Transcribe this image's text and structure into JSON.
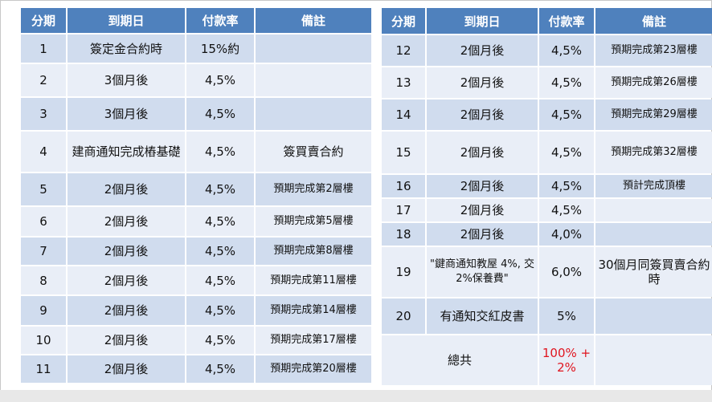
{
  "left_table": {
    "headers": [
      "分期",
      "到期日",
      "付款率",
      "備註"
    ],
    "rows": [
      {
        "period": "1",
        "due": "簽定金合約時",
        "rate": "15%約",
        "note": ""
      },
      {
        "period": "2",
        "due": "3個月後",
        "rate": "4,5%",
        "note": ""
      },
      {
        "period": "3",
        "due": "3個月後",
        "rate": "4,5%",
        "note": ""
      },
      {
        "period": "4",
        "due": "建商通知完成樁基礎",
        "rate": "4,5%",
        "note": "簽買賣合約"
      },
      {
        "period": "5",
        "due": "2個月後",
        "rate": "4,5%",
        "note": "預期完成第2層樓"
      },
      {
        "period": "6",
        "due": "2個月後",
        "rate": "4,5%",
        "note": "預期完成第5層樓"
      },
      {
        "period": "7",
        "due": "2個月後",
        "rate": "4,5%",
        "note": "預期完成第8層樓"
      },
      {
        "period": "8",
        "due": "2個月後",
        "rate": "4,5%",
        "note": "預期完成第11層樓"
      },
      {
        "period": "9",
        "due": "2個月後",
        "rate": "4,5%",
        "note": "預期完成第14層樓"
      },
      {
        "period": "10",
        "due": "2個月後",
        "rate": "4,5%",
        "note": "預期完成第17層樓"
      },
      {
        "period": "11",
        "due": "2個月後",
        "rate": "4,5%",
        "note": "預期完成第20層樓"
      }
    ]
  },
  "right_table": {
    "headers": [
      "分期",
      "到期日",
      "付款率",
      "備註"
    ],
    "rows": [
      {
        "period": "12",
        "due": "2個月後",
        "rate": "4,5%",
        "note": "預期完成第23層樓"
      },
      {
        "period": "13",
        "due": "2個月後",
        "rate": "4,5%",
        "note": "預期完成第26層樓"
      },
      {
        "period": "14",
        "due": "2個月後",
        "rate": "4,5%",
        "note": "預期完成第29層樓"
      },
      {
        "period": "15",
        "due": "2個月後",
        "rate": "4,5%",
        "note": "預期完成第32層樓"
      },
      {
        "period": "16",
        "due": "2個月後",
        "rate": "4,5%",
        "note": "預計完成頂樓"
      },
      {
        "period": "17",
        "due": "2個月後",
        "rate": "4,5%",
        "note": ""
      },
      {
        "period": "18",
        "due": "2個月後",
        "rate": "4,0%",
        "note": ""
      },
      {
        "period": "19",
        "due": "\"鍵商通知教屋 4%, 交2%保養費\"",
        "rate": "6,0%",
        "note": "30個月同簽買賣合約時"
      },
      {
        "period": "20",
        "due": "有通知交紅皮書",
        "rate": "5%",
        "note": ""
      }
    ],
    "total": {
      "label": "總共",
      "value": "100% + 2%"
    },
    "total_color": "#e0141e"
  },
  "colors": {
    "header": "#4f81bd",
    "row_dark": "#d0dcee",
    "row_light": "#e9eef7"
  }
}
